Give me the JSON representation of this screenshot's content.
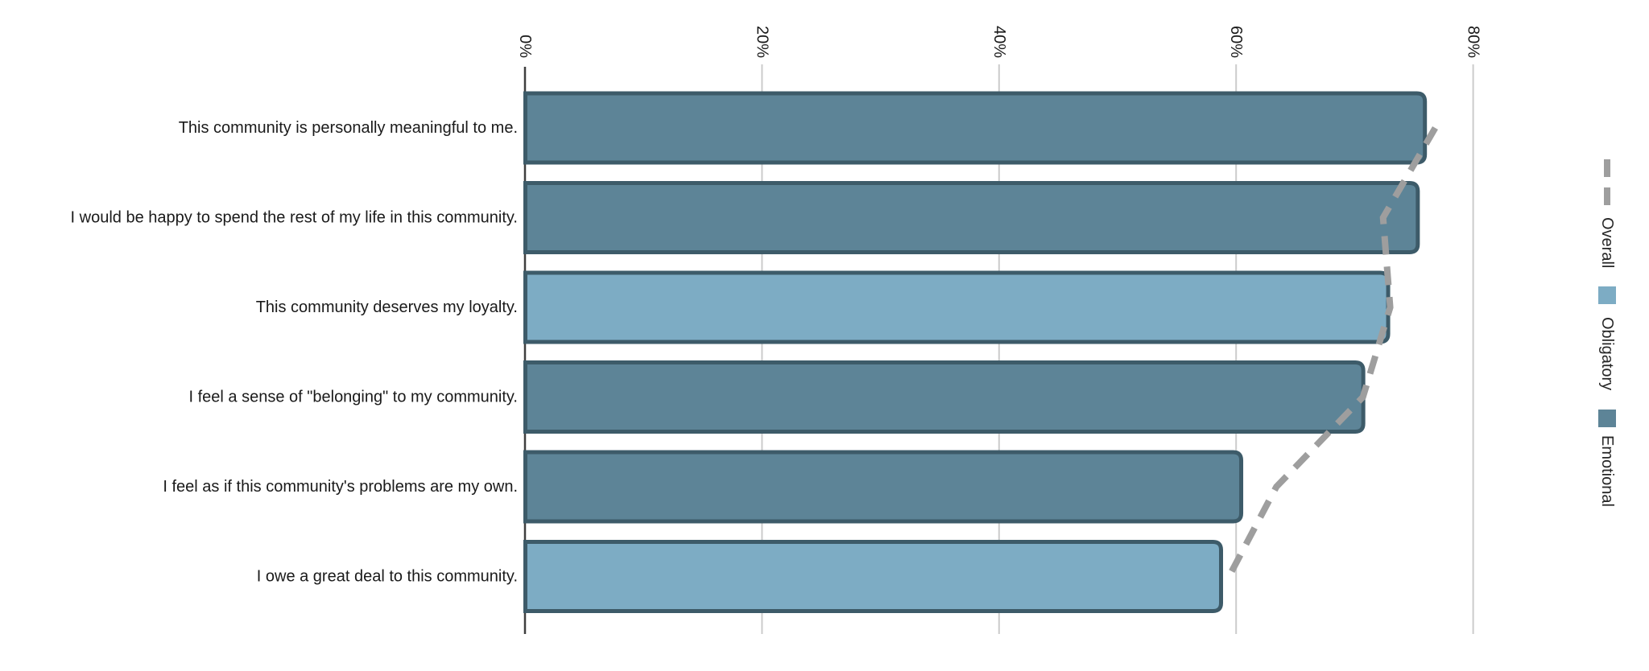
{
  "chart_data": {
    "type": "bar",
    "orientation": "horizontal",
    "title": "",
    "x_axis": {
      "position": "top",
      "ticks": [
        "0%",
        "20%",
        "40%",
        "60%",
        "80%"
      ],
      "tick_values": [
        0,
        20,
        40,
        60,
        80
      ],
      "range": [
        0,
        88
      ],
      "unit": "%",
      "grid": true
    },
    "items": [
      {
        "label": "This community is personally meaningful to me.",
        "subscale": "Emotional",
        "value_pct": 76.1
      },
      {
        "label": "I would be happy to spend the rest of my life in this community.",
        "subscale": "Emotional",
        "value_pct": 75.5
      },
      {
        "label": "This community deserves my loyalty.",
        "subscale": "Obligatory",
        "value_pct": 73.0
      },
      {
        "label": "I feel a sense of \"belonging\" to my community.",
        "subscale": "Emotional",
        "value_pct": 70.9
      },
      {
        "label": "I feel as if this community's problems are my own.",
        "subscale": "Emotional",
        "value_pct": 60.6
      },
      {
        "label": "I owe a great deal to this community.",
        "subscale": "Obligatory",
        "value_pct": 58.9
      }
    ],
    "overall_line": {
      "name": "Overall",
      "style": "dashed",
      "values_pct": [
        76.8,
        72.4,
        73.0,
        70.7,
        63.4,
        59.4
      ]
    }
  },
  "legend": {
    "items": [
      {
        "label": "Overall",
        "symbol": "dashed-line",
        "color": "#9e9e9e"
      },
      {
        "label": "Obligatory",
        "symbol": "square",
        "color": "#7dacc4"
      },
      {
        "label": "Emotional",
        "symbol": "square",
        "color": "#5d8497"
      }
    ]
  },
  "colors": {
    "emotional": "#5d8497",
    "obligatory": "#7dacc4",
    "overall": "#9e9e9e",
    "bar_border": "#3d5b69",
    "gridline": "#cccccc",
    "axis": "#3f3f3f",
    "text": "#1a1a1a",
    "background": "#ffffff"
  }
}
